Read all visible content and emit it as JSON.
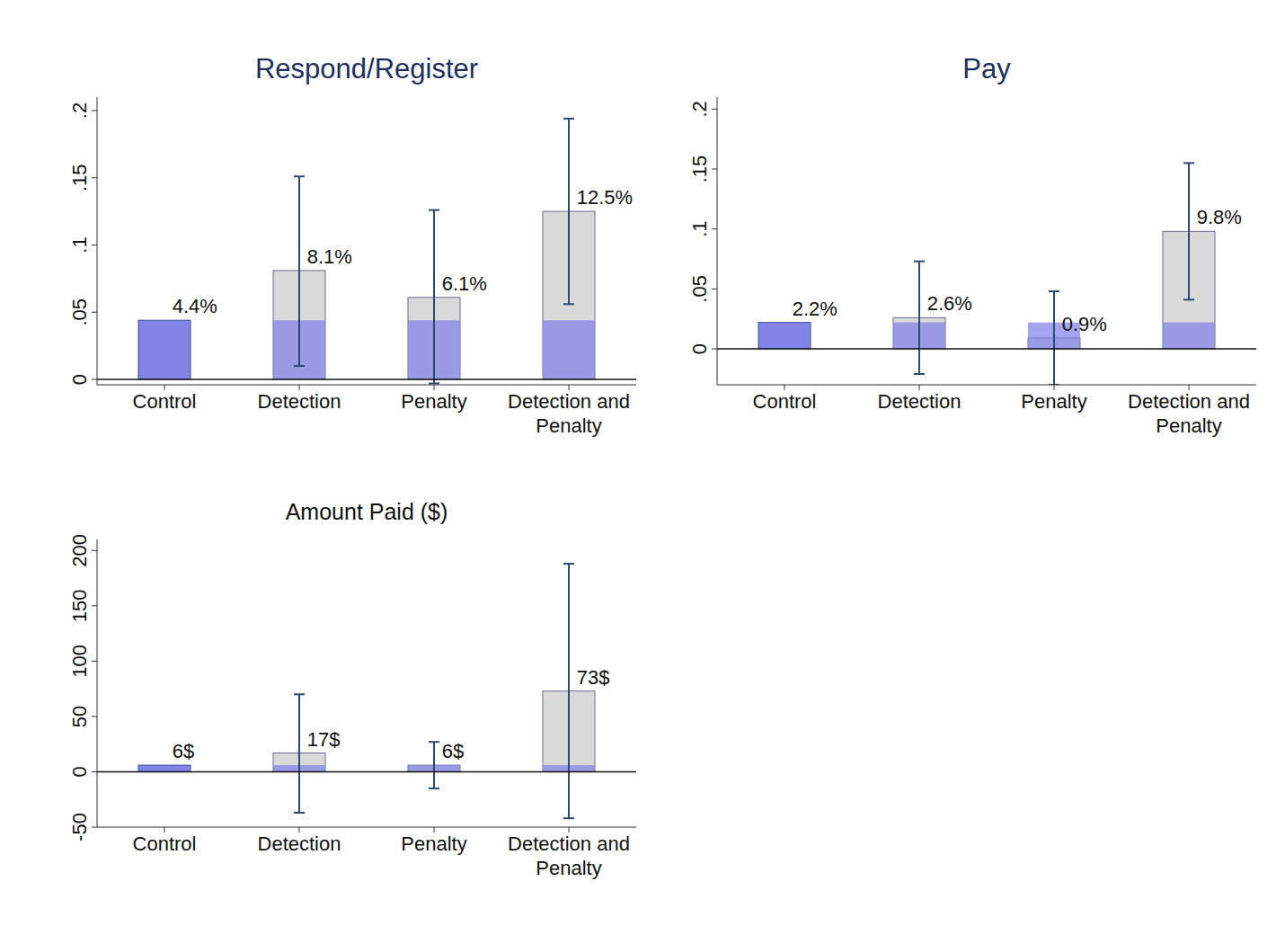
{
  "chart_data": [
    {
      "type": "bar",
      "title": "Respond/Register",
      "categories": [
        "Control",
        "Detection",
        "Penalty",
        "Detection and Penalty"
      ],
      "values": [
        0.044,
        0.081,
        0.061,
        0.125
      ],
      "value_labels": [
        "4.4%",
        "8.1%",
        "6.1%",
        "12.5%"
      ],
      "error_low": [
        null,
        0.01,
        -0.003,
        0.056
      ],
      "error_high": [
        null,
        0.151,
        0.126,
        0.194
      ],
      "colors": [
        "#8484e8",
        "#d9d9d9",
        "#d9d9d9",
        "#d9d9d9"
      ],
      "ylim": [
        -0.004,
        0.21
      ],
      "yticks": [
        0,
        {
          "value": 0.05,
          "label": ".05"
        },
        {
          "value": 0.1,
          "label": ".1"
        },
        {
          "value": 0.15,
          "label": ".15"
        },
        {
          "value": 0.2,
          "label": ".2"
        }
      ],
      "data_labels": true,
      "grid": false
    },
    {
      "type": "bar",
      "title": "Pay",
      "categories": [
        "Control",
        "Detection",
        "Penalty",
        "Detection and Penalty"
      ],
      "values": [
        0.022,
        0.026,
        0.009,
        0.098
      ],
      "value_labels": [
        "2.2%",
        "2.6%",
        "0.9%",
        "9.8%"
      ],
      "error_low": [
        null,
        -0.021,
        -0.03,
        0.041
      ],
      "error_high": [
        null,
        0.073,
        0.048,
        0.155
      ],
      "colors": [
        "#8484e8",
        "#d9d9d9",
        "#d9d9d9",
        "#d9d9d9"
      ],
      "ylim": [
        -0.03,
        0.21
      ],
      "yticks": [
        0,
        {
          "value": 0.05,
          "label": ".05"
        },
        {
          "value": 0.1,
          "label": ".1"
        },
        {
          "value": 0.15,
          "label": ".15"
        },
        {
          "value": 0.2,
          "label": ".2"
        }
      ],
      "data_labels": true,
      "grid": false
    },
    {
      "type": "bar",
      "title": "Amount Paid ($)",
      "categories": [
        "Control",
        "Detection",
        "Penalty",
        "Detection and Penalty"
      ],
      "values": [
        6,
        17,
        6,
        73
      ],
      "value_labels": [
        "6$",
        "17$",
        "6$",
        "73$"
      ],
      "error_low": [
        null,
        -37,
        -15,
        -42
      ],
      "error_high": [
        null,
        70,
        27,
        188
      ],
      "colors": [
        "#8484e8",
        "#d9d9d9",
        "#d9d9d9",
        "#d9d9d9"
      ],
      "ylim": [
        -50,
        210
      ],
      "yticks": [
        -50,
        0,
        50,
        100,
        150,
        200
      ],
      "data_labels": true,
      "grid": false
    }
  ]
}
